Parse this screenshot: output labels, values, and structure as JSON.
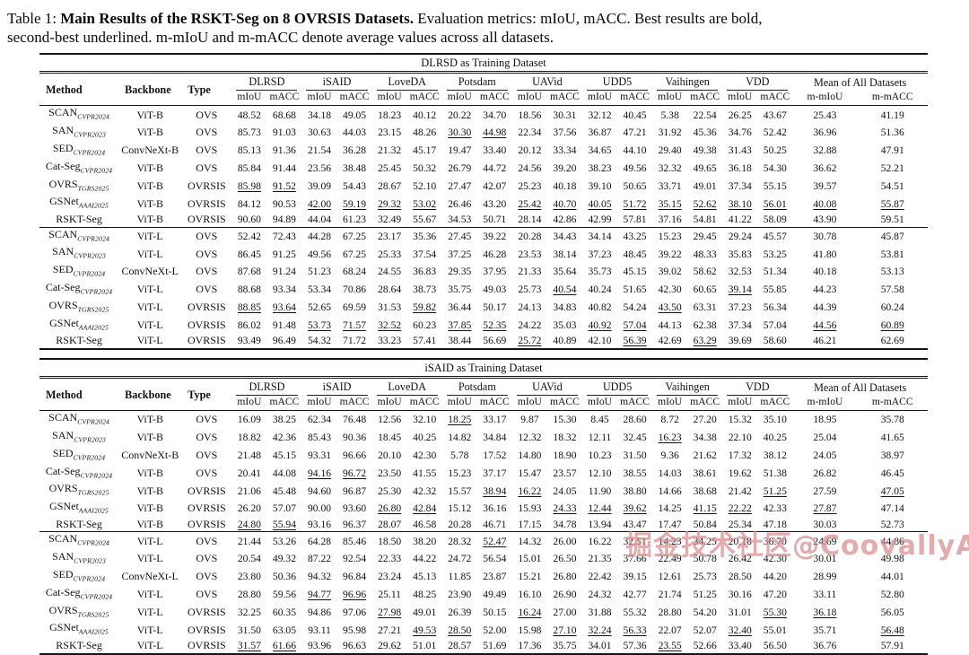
{
  "caption": {
    "prefix": "Table 1: ",
    "bold": "Main Results of the RSKT-Seg on 8 OVRSIS Datasets.",
    "line1_rest": " Evaluation metrics: mIoU, mACC. Best results are bold,",
    "line2": "second-best underlined. m-mIoU and m-mACC denote average values across all datasets."
  },
  "cell_format_markers": {
    "*": "bold = best result",
    "_": "underlined = second-best result"
  },
  "header": {
    "method": "Method",
    "backbone": "Backbone",
    "type": "Type",
    "miou": "mIoU",
    "macc": "mACC",
    "mean_label": "Mean of All Datasets",
    "m_miou": "m-mIoU",
    "m_macc": "m-mACC",
    "datasets": [
      "DLRSD",
      "iSAID",
      "LoveDA",
      "Potsdam",
      "UAVid",
      "UDD5",
      "Vaihingen",
      "VDD"
    ]
  },
  "tables": [
    {
      "subtitle": "DLRSD as Training Dataset",
      "groups": [
        [
          {
            "method": "SCAN",
            "sub": "CVPR2024",
            "backbone": "ViT-B",
            "type": "OVS",
            "values": [
              "48.52",
              "68.68",
              "34.18",
              "49.05",
              "18.23",
              "40.12",
              "20.22",
              "34.70",
              "18.56",
              "30.31",
              "32.12",
              "40.45",
              "5.38",
              "22.54",
              "26.25",
              "43.67",
              "25.43",
              "41.19"
            ]
          },
          {
            "method": "SAN",
            "sub": "CVPR2023",
            "backbone": "ViT-B",
            "type": "OVS",
            "values": [
              "85.73",
              "91.03",
              "30.63",
              "44.03",
              "23.15",
              "48.26",
              "_30.30",
              "_44.98",
              "22.34",
              "37.56",
              "36.87",
              "47.21",
              "31.92",
              "45.36",
              "34.76",
              "52.42",
              "36.96",
              "51.36"
            ]
          },
          {
            "method": "SED",
            "sub": "CVPR2024",
            "backbone": "ConvNeXt-B",
            "type": "OVS",
            "values": [
              "85.13",
              "91.36",
              "21.54",
              "36.28",
              "21.32",
              "45.17",
              "19.47",
              "33.40",
              "20.12",
              "33.34",
              "34.65",
              "44.10",
              "29.40",
              "49.38",
              "31.43",
              "50.25",
              "32.88",
              "47.91"
            ]
          },
          {
            "method": "Cat-Seg",
            "sub": "CVPR2024",
            "backbone": "ViT-B",
            "type": "OVS",
            "values": [
              "85.84",
              "91.44",
              "23.56",
              "38.48",
              "25.45",
              "50.32",
              "26.79",
              "44.72",
              "24.56",
              "39.20",
              "38.23",
              "49.56",
              "32.32",
              "49.65",
              "36.18",
              "54.30",
              "36.62",
              "52.21"
            ]
          },
          {
            "method": "OVRS",
            "sub": "TGRS2025",
            "backbone": "ViT-B",
            "type": "OVRSIS",
            "values": [
              "_85.98",
              "_91.52",
              "39.09",
              "54.43",
              "28.67",
              "52.10",
              "27.47",
              "42.07",
              "25.23",
              "40.18",
              "39.10",
              "50.65",
              "33.71",
              "49.01",
              "37.34",
              "55.15",
              "39.57",
              "54.51"
            ]
          },
          {
            "method": "GSNet",
            "sub": "AAAI2025",
            "backbone": "ViT-B",
            "type": "OVRSIS",
            "values": [
              "84.12",
              "90.53",
              "_42.00",
              "_59.19",
              "_29.32",
              "_53.02",
              "26.46",
              "43.20",
              "_25.42",
              "_40.70",
              "_40.05",
              "_51.72",
              "_35.15",
              "_52.62",
              "_38.10",
              "_56.01",
              "_40.08",
              "_55.87"
            ]
          },
          {
            "method": "RSKT-Seg",
            "sub": "",
            "backbone": "ViT-B",
            "type": "OVRSIS",
            "values": [
              "*90.60",
              "*94.89",
              "*44.04",
              "*61.23",
              "*32.49",
              "*55.67",
              "*34.53",
              "*50.71",
              "*28.14",
              "*42.86",
              "*42.99",
              "*57.81",
              "*37.16",
              "*54.81",
              "*41.22",
              "*58.09",
              "*43.90",
              "*59.51"
            ]
          }
        ],
        [
          {
            "method": "SCAN",
            "sub": "CVPR2024",
            "backbone": "ViT-L",
            "type": "OVS",
            "values": [
              "52.42",
              "72.43",
              "44.28",
              "67.25",
              "23.17",
              "35.36",
              "27.45",
              "39.22",
              "20.28",
              "34.43",
              "34.14",
              "43.25",
              "15.23",
              "29.45",
              "29.24",
              "45.57",
              "30.78",
              "45.87"
            ]
          },
          {
            "method": "SAN",
            "sub": "CVPR2023",
            "backbone": "ViT-L",
            "type": "OVS",
            "values": [
              "86.45",
              "91.25",
              "49.56",
              "67.25",
              "25.33",
              "37.54",
              "37.25",
              "46.28",
              "23.53",
              "38.14",
              "37.23",
              "48.45",
              "39.22",
              "48.33",
              "35.83",
              "53.25",
              "41.80",
              "53.81"
            ]
          },
          {
            "method": "SED",
            "sub": "CVPR2024",
            "backbone": "ConvNeXt-L",
            "type": "OVS",
            "values": [
              "87.68",
              "91.24",
              "51.23",
              "68.24",
              "24.55",
              "36.83",
              "29.35",
              "37.95",
              "21.33",
              "35.64",
              "35.73",
              "45.15",
              "39.02",
              "58.62",
              "32.53",
              "51.34",
              "40.18",
              "53.13"
            ]
          },
          {
            "method": "Cat-Seg",
            "sub": "CVPR2024",
            "backbone": "ViT-L",
            "type": "OVS",
            "values": [
              "88.68",
              "93.34",
              "53.34",
              "70.86",
              "28.64",
              "38.73",
              "35.75",
              "49.03",
              "*25.73",
              "_40.54",
              "40.24",
              "51.65",
              "42.30",
              "60.65",
              "_39.14",
              "55.85",
              "44.23",
              "57.58"
            ]
          },
          {
            "method": "OVRS",
            "sub": "TGRS2025",
            "backbone": "ViT-L",
            "type": "OVRSIS",
            "values": [
              "_88.85",
              "_93.64",
              "52.65",
              "69.59",
              "31.53",
              "_59.82",
              "36.44",
              "50.17",
              "24.13",
              "34.83",
              "40.82",
              "54.24",
              "_43.50",
              "*63.31",
              "37.23",
              "56.34",
              "44.39",
              "60.24"
            ]
          },
          {
            "method": "GSNet",
            "sub": "AAAI2025",
            "backbone": "ViT-L",
            "type": "OVRSIS",
            "values": [
              "86.02",
              "91.48",
              "_53.73",
              "_71.57",
              "_32.52",
              "*60.23",
              "_37.85",
              "_52.35",
              "24.22",
              "35.03",
              "_40.92",
              "_57.04",
              "*44.13",
              "62.38",
              "37.34",
              "57.04",
              "_44.56",
              "_60.89"
            ]
          },
          {
            "method": "RSKT-Seg",
            "sub": "",
            "backbone": "ViT-L",
            "type": "OVRSIS",
            "values": [
              "*93.49",
              "*96.49",
              "*54.32",
              "*71.72",
              "*33.23",
              "57.41",
              "*38.44",
              "*56.69",
              "_25.72",
              "*40.89",
              "*42.10",
              "_56.39",
              "42.69",
              "_63.29",
              "*39.69",
              "*58.60",
              "*46.21",
              "*62.69"
            ]
          }
        ]
      ]
    },
    {
      "subtitle": "iSAID as Training Dataset",
      "groups": [
        [
          {
            "method": "SCAN",
            "sub": "CVPR2024",
            "backbone": "ViT-B",
            "type": "OVS",
            "values": [
              "16.09",
              "38.25",
              "62.34",
              "76.48",
              "12.56",
              "32.10",
              "_18.25",
              "33.17",
              "9.87",
              "15.30",
              "8.45",
              "28.60",
              "8.72",
              "27.20",
              "15.32",
              "35.10",
              "18.95",
              "35.78"
            ]
          },
          {
            "method": "SAN",
            "sub": "CVPR2023",
            "backbone": "ViT-B",
            "type": "OVS",
            "values": [
              "18.82",
              "42.36",
              "85.43",
              "90.36",
              "18.45",
              "40.25",
              "14.82",
              "34.84",
              "12.32",
              "18.32",
              "12.11",
              "32.45",
              "_16.23",
              "34.38",
              "22.10",
              "40.25",
              "25.04",
              "41.65"
            ]
          },
          {
            "method": "SED",
            "sub": "CVPR2024",
            "backbone": "ConvNeXt-B",
            "type": "OVS",
            "values": [
              "21.48",
              "45.15",
              "93.31",
              "96.66",
              "20.10",
              "42.30",
              "5.78",
              "17.52",
              "14.80",
              "18.90",
              "10.23",
              "31.50",
              "9.36",
              "21.62",
              "17.32",
              "38.12",
              "24.05",
              "38.97"
            ]
          },
          {
            "method": "Cat-Seg",
            "sub": "CVPR2024",
            "backbone": "ViT-B",
            "type": "OVS",
            "values": [
              "20.41",
              "44.08",
              "_94.16",
              "_96.72",
              "23.50",
              "41.55",
              "15.23",
              "37.17",
              "15.47",
              "23.57",
              "12.10",
              "38.55",
              "14.03",
              "38.61",
              "19.62",
              "*51.38",
              "26.82",
              "46.45"
            ]
          },
          {
            "method": "OVRS",
            "sub": "TGRS2025",
            "backbone": "ViT-B",
            "type": "OVRSIS",
            "values": [
              "21.06",
              "45.48",
              "*94.60",
              "*96.87",
              "25.30",
              "42.32",
              "15.57",
              "_38.94",
              "_16.22",
              "24.05",
              "11.90",
              "38.80",
              "14.66",
              "38.68",
              "21.42",
              "_51.25",
              "27.59",
              "_47.05"
            ]
          },
          {
            "method": "GSNet",
            "sub": "AAAI2025",
            "backbone": "ViT-B",
            "type": "OVRSIS",
            "values": [
              "*26.20",
              "*57.07",
              "90.00",
              "93.60",
              "_26.80",
              "_42.84",
              "15.12",
              "36.16",
              "15.93",
              "_24.33",
              "_12.44",
              "_39.62",
              "14.25",
              "_41.15",
              "_22.22",
              "42.33",
              "_27.87",
              "47.14"
            ]
          },
          {
            "method": "RSKT-Seg",
            "sub": "",
            "backbone": "ViT-B",
            "type": "OVRSIS",
            "values": [
              "_24.80",
              "_55.94",
              "93.16",
              "96.37",
              "*28.07",
              "*46.58",
              "*20.28",
              "*46.71",
              "*17.15",
              "*34.78",
              "*13.94",
              "*43.47",
              "*17.47",
              "*50.84",
              "*25.34",
              "47.18",
              "*30.03",
              "*52.73"
            ]
          }
        ],
        [
          {
            "method": "SCAN",
            "sub": "CVPR2024",
            "backbone": "ViT-L",
            "type": "OVS",
            "values": [
              "21.44",
              "53.26",
              "64.28",
              "85.46",
              "18.50",
              "38.20",
              "28.32",
              "_52.47",
              "14.32",
              "26.00",
              "16.22",
              "32.51",
              "14.23",
              "34.25",
              "20.18",
              "36.70",
              "24.69",
              "44.86"
            ]
          },
          {
            "method": "SAN",
            "sub": "CVPR2023",
            "backbone": "ViT-L",
            "type": "OVS",
            "values": [
              "20.54",
              "49.32",
              "87.22",
              "92.54",
              "22.33",
              "44.22",
              "24.72",
              "*56.54",
              "15.01",
              "26.50",
              "21.35",
              "37.66",
              "22.49",
              "50.78",
              "26.42",
              "42.30",
              "30.01",
              "49.98"
            ]
          },
          {
            "method": "SED",
            "sub": "CVPR2024",
            "backbone": "ConvNeXt-L",
            "type": "OVS",
            "values": [
              "23.80",
              "50.36",
              "94.32",
              "96.84",
              "23.24",
              "45.13",
              "11.85",
              "23.87",
              "15.21",
              "26.80",
              "22.42",
              "39.15",
              "12.61",
              "*25.73",
              "28.50",
              "44.20",
              "28.99",
              "44.01"
            ]
          },
          {
            "method": "Cat-Seg",
            "sub": "CVPR2024",
            "backbone": "ViT-L",
            "type": "OVS",
            "values": [
              "28.80",
              "59.56",
              "_94.77",
              "_96.96",
              "25.11",
              "48.25",
              "23.90",
              "49.49",
              "16.10",
              "26.90",
              "24.32",
              "42.77",
              "21.74",
              "51.25",
              "30.16",
              "47.20",
              "33.11",
              "52.80"
            ]
          },
          {
            "method": "OVRS",
            "sub": "TGRS2025",
            "backbone": "ViT-L",
            "type": "OVRSIS",
            "values": [
              "*32.25",
              "60.35",
              "*94.86",
              "*97.06",
              "_27.98",
              "49.01",
              "26.39",
              "50.15",
              "_16.24",
              "27.00",
              "31.88",
              "55.32",
              "*28.80",
              "*54.20",
              "31.01",
              "_55.30",
              "_36.18",
              "56.05"
            ]
          },
          {
            "method": "GSNet",
            "sub": "AAAI2025",
            "backbone": "ViT-L",
            "type": "OVRSIS",
            "values": [
              "31.50",
              "*63.05",
              "93.11",
              "95.98",
              "27.21",
              "_49.53",
              "_28.50",
              "52.00",
              "15.98",
              "_27.10",
              "_32.24",
              "_56.33",
              "22.07",
              "52.07",
              "_32.40",
              "55.01",
              "35.71",
              "_56.48"
            ]
          },
          {
            "method": "RSKT-Seg",
            "sub": "",
            "backbone": "ViT-L",
            "type": "OVRSIS",
            "values": [
              "_31.57",
              "_61.66",
              "93.96",
              "96.63",
              "*29.62",
              "*51.01",
              "*28.57",
              "51.69",
              "*17.36",
              "*35.75",
              "*34.01",
              "*57.36",
              "_23.55",
              "52.66",
              "*33.40",
              "*56.50",
              "*36.76",
              "*57.91"
            ]
          }
        ]
      ]
    }
  ],
  "watermark": {
    "text": "掘金技术社区@CoovallyAIHub",
    "color": "#d98c8c"
  }
}
